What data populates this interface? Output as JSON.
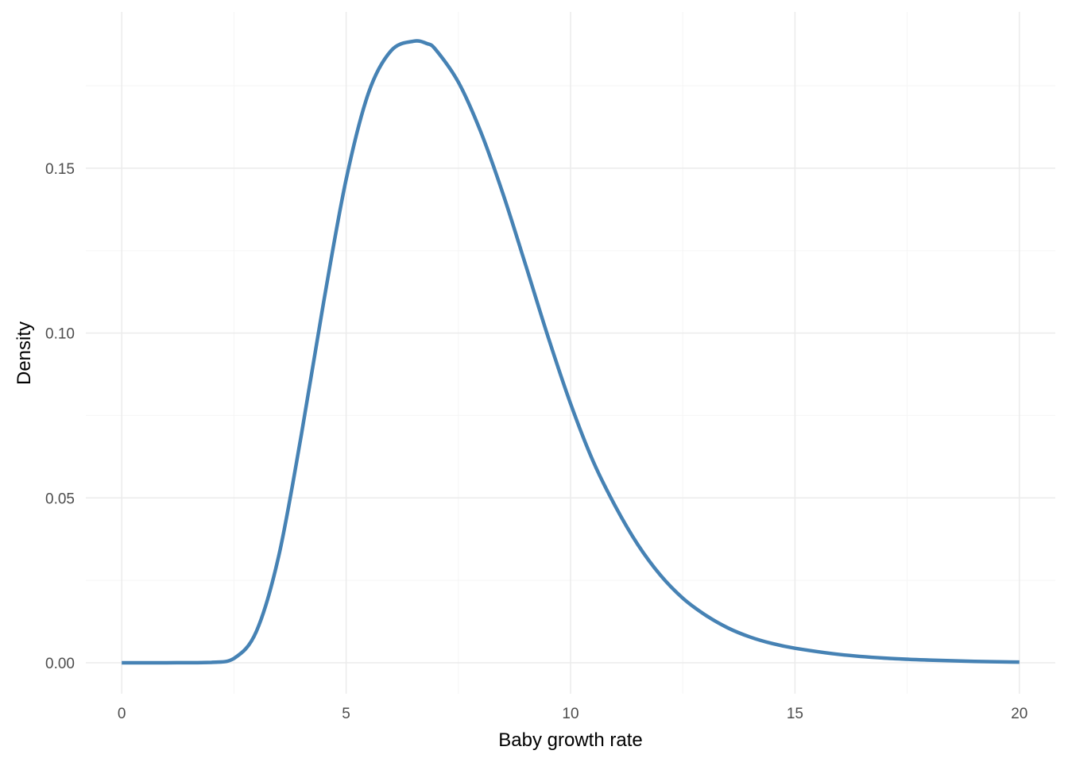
{
  "chart_data": {
    "type": "line",
    "xlabel": "Baby growth rate",
    "ylabel": "Density",
    "xlim": [
      -0.8,
      20.8
    ],
    "ylim": [
      -0.0094,
      0.1974
    ],
    "x_ticks": [
      0,
      5,
      10,
      15,
      20
    ],
    "x_tick_labels": [
      "0",
      "5",
      "10",
      "15",
      "20"
    ],
    "y_ticks": [
      0.0,
      0.05,
      0.1,
      0.15
    ],
    "y_tick_labels": [
      "0.00",
      "0.05",
      "0.10",
      "0.15"
    ],
    "x_minor_ticks": [
      2.5,
      7.5,
      12.5,
      17.5
    ],
    "y_minor_ticks": [
      0.025,
      0.075,
      0.125,
      0.175
    ],
    "grid": true,
    "legend": "none",
    "colors": {
      "line": "#4682B4",
      "grid_major": "#EBEBEB",
      "grid_minor": "#F5F5F5"
    },
    "series": [
      {
        "x": [
          0,
          1,
          2,
          2.5,
          3,
          3.5,
          4,
          4.5,
          5,
          5.5,
          6,
          6.5,
          6.8,
          7,
          7.5,
          8,
          8.5,
          9,
          9.5,
          10,
          10.5,
          11,
          11.5,
          12,
          12.5,
          13,
          13.5,
          14,
          14.5,
          15,
          16,
          17,
          18,
          19,
          20
        ],
        "values": [
          0.0,
          0.0,
          0.0001,
          0.0013,
          0.0095,
          0.0325,
          0.069,
          0.1095,
          0.1466,
          0.1729,
          0.1856,
          0.1885,
          0.1878,
          0.1859,
          0.1761,
          0.161,
          0.142,
          0.1206,
          0.0988,
          0.0786,
          0.0612,
          0.0474,
          0.0358,
          0.0266,
          0.0196,
          0.0145,
          0.0106,
          0.0078,
          0.0058,
          0.0044,
          0.0025,
          0.0014,
          0.0008,
          0.0004,
          0.0002
        ]
      }
    ]
  }
}
